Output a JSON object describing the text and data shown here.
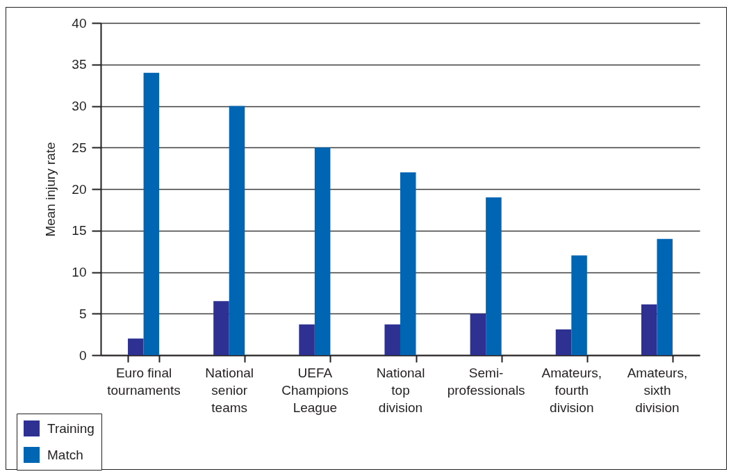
{
  "chart_data": {
    "type": "bar",
    "ylabel": "Mean injury rate",
    "categories": [
      "Euro final tournaments",
      "National senior teams",
      "UEFA Champions League",
      "National top division",
      "Semi-professionals",
      "Amateurs, fourth division",
      "Amateurs, sixth division"
    ],
    "series": [
      {
        "name": "Training",
        "color": "#2e3192",
        "values": [
          2,
          6.5,
          3.7,
          3.7,
          5,
          3.1,
          6.1
        ]
      },
      {
        "name": "Match",
        "color": "#0066b3",
        "values": [
          34,
          30,
          25,
          22,
          19,
          12,
          14
        ]
      }
    ],
    "ylim": [
      0,
      40
    ],
    "yticks": [
      0,
      5,
      10,
      15,
      20,
      25,
      30,
      35,
      40
    ],
    "grid": "y",
    "legend": "bottom left"
  }
}
